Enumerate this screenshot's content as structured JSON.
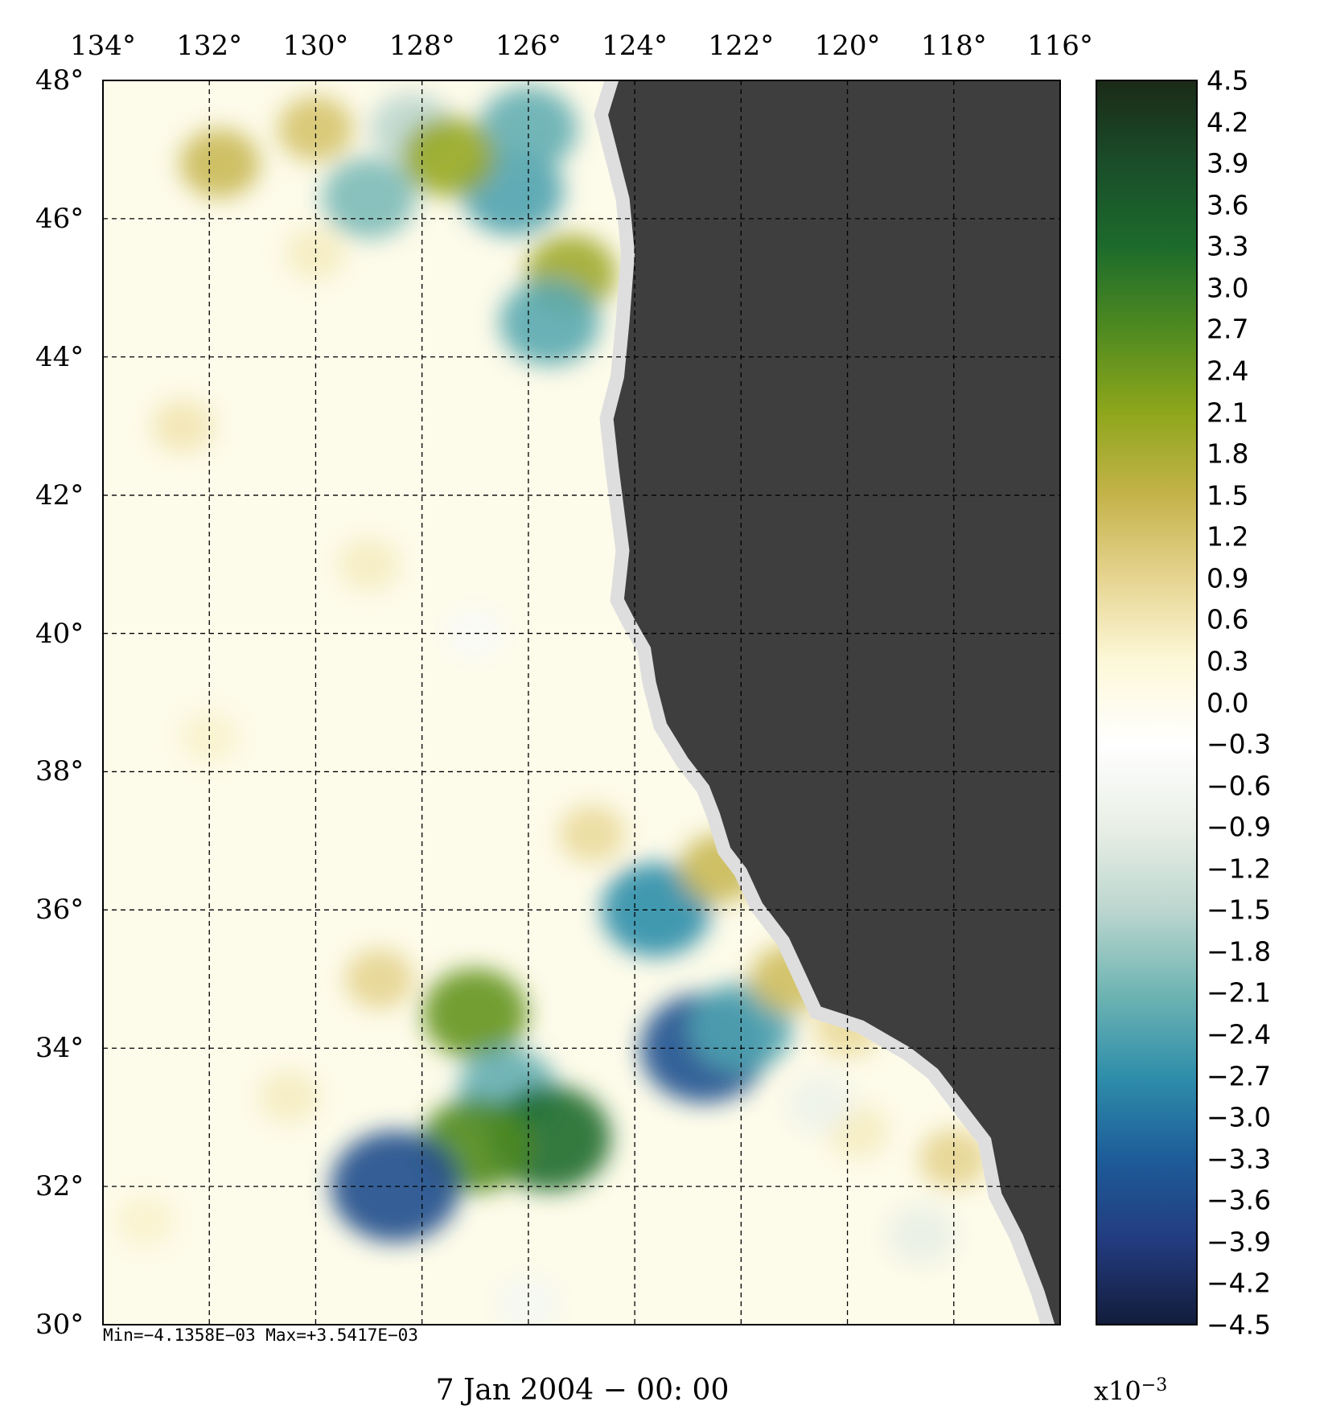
{
  "map": {
    "lon_ticks": [
      "134°",
      "132°",
      "130°",
      "128°",
      "126°",
      "124°",
      "122°",
      "120°",
      "118°",
      "116°"
    ],
    "lat_ticks": [
      "48°",
      "46°",
      "44°",
      "42°",
      "40°",
      "38°",
      "36°",
      "34°",
      "32°",
      "30°"
    ],
    "lon_range": [
      134,
      116
    ],
    "lat_range": [
      30,
      48
    ],
    "land_color": "#3e3e3e",
    "gridlines": "dashed"
  },
  "colorbar": {
    "ticks": [
      "4.5",
      "4.2",
      "3.9",
      "3.6",
      "3.3",
      "3.0",
      "2.7",
      "2.4",
      "2.1",
      "1.8",
      "1.5",
      "1.2",
      "0.9",
      "0.6",
      "0.3",
      "0.0",
      "−0.3",
      "−0.6",
      "−0.9",
      "−1.2",
      "−1.5",
      "−1.8",
      "−2.1",
      "−2.4",
      "−2.7",
      "−3.0",
      "−3.3",
      "−3.6",
      "−3.9",
      "−4.2",
      "−4.5"
    ],
    "range": [
      -4.5,
      4.5
    ],
    "colors_top_to_bottom": [
      "#1b2a17",
      "#1a4d2a",
      "#1c6b2c",
      "#4f8a20",
      "#8ea61b",
      "#c4b34a",
      "#e6d490",
      "#fdf8d8",
      "#ffffff",
      "#e9efe6",
      "#bcd6cf",
      "#6fb5b3",
      "#2f8eaa",
      "#1d5c99",
      "#233b7f",
      "#121c3a"
    ],
    "multiplier": "x10",
    "exponent": "−3"
  },
  "footer": {
    "minmax": "Min=−4.1358E−03   Max=+3.5417E−03",
    "date": "7 Jan 2004 − 00: 00"
  },
  "features": [
    {
      "lon": 129.0,
      "lat": 46.3,
      "v": -2.0
    },
    {
      "lon": 126.3,
      "lat": 46.4,
      "v": -2.4
    },
    {
      "lon": 128.2,
      "lat": 47.3,
      "v": -1.5
    },
    {
      "lon": 126.0,
      "lat": 47.3,
      "v": -2.2
    },
    {
      "lon": 127.5,
      "lat": 46.9,
      "v": 2.0
    },
    {
      "lon": 131.8,
      "lat": 46.8,
      "v": 1.4
    },
    {
      "lon": 130.0,
      "lat": 47.3,
      "v": 1.2
    },
    {
      "lon": 125.2,
      "lat": 45.2,
      "v": 1.9
    },
    {
      "lon": 125.6,
      "lat": 44.5,
      "v": -2.3
    },
    {
      "lon": 130.0,
      "lat": 45.5,
      "v": 0.5
    },
    {
      "lon": 132.5,
      "lat": 43.0,
      "v": 0.6
    },
    {
      "lon": 129.0,
      "lat": 41.0,
      "v": 0.5
    },
    {
      "lon": 127.0,
      "lat": 40.0,
      "v": -0.5
    },
    {
      "lon": 132.0,
      "lat": 38.5,
      "v": 0.4
    },
    {
      "lon": 124.8,
      "lat": 37.1,
      "v": 0.8
    },
    {
      "lon": 127.0,
      "lat": 34.5,
      "v": 2.5
    },
    {
      "lon": 128.8,
      "lat": 35.0,
      "v": 0.9
    },
    {
      "lon": 126.4,
      "lat": 33.4,
      "v": -2.2
    },
    {
      "lon": 125.6,
      "lat": 32.7,
      "v": 3.3
    },
    {
      "lon": 127.0,
      "lat": 32.6,
      "v": 2.7
    },
    {
      "lon": 128.5,
      "lat": 32.0,
      "v": -3.6
    },
    {
      "lon": 123.6,
      "lat": 36.0,
      "v": -2.7
    },
    {
      "lon": 122.7,
      "lat": 34.0,
      "v": -3.5
    },
    {
      "lon": 122.0,
      "lat": 34.3,
      "v": -2.4
    },
    {
      "lon": 122.4,
      "lat": 36.6,
      "v": 1.4
    },
    {
      "lon": 121.1,
      "lat": 35.0,
      "v": 1.3
    },
    {
      "lon": 120.0,
      "lat": 34.3,
      "v": 0.8
    },
    {
      "lon": 118.0,
      "lat": 32.4,
      "v": 0.9
    },
    {
      "lon": 119.8,
      "lat": 32.8,
      "v": 0.5
    },
    {
      "lon": 118.6,
      "lat": 31.3,
      "v": -0.9
    },
    {
      "lon": 120.5,
      "lat": 33.2,
      "v": -0.8
    },
    {
      "lon": 126.0,
      "lat": 30.3,
      "v": -0.6
    },
    {
      "lon": 130.5,
      "lat": 33.3,
      "v": 0.5
    },
    {
      "lon": 133.2,
      "lat": 31.5,
      "v": 0.4
    }
  ]
}
